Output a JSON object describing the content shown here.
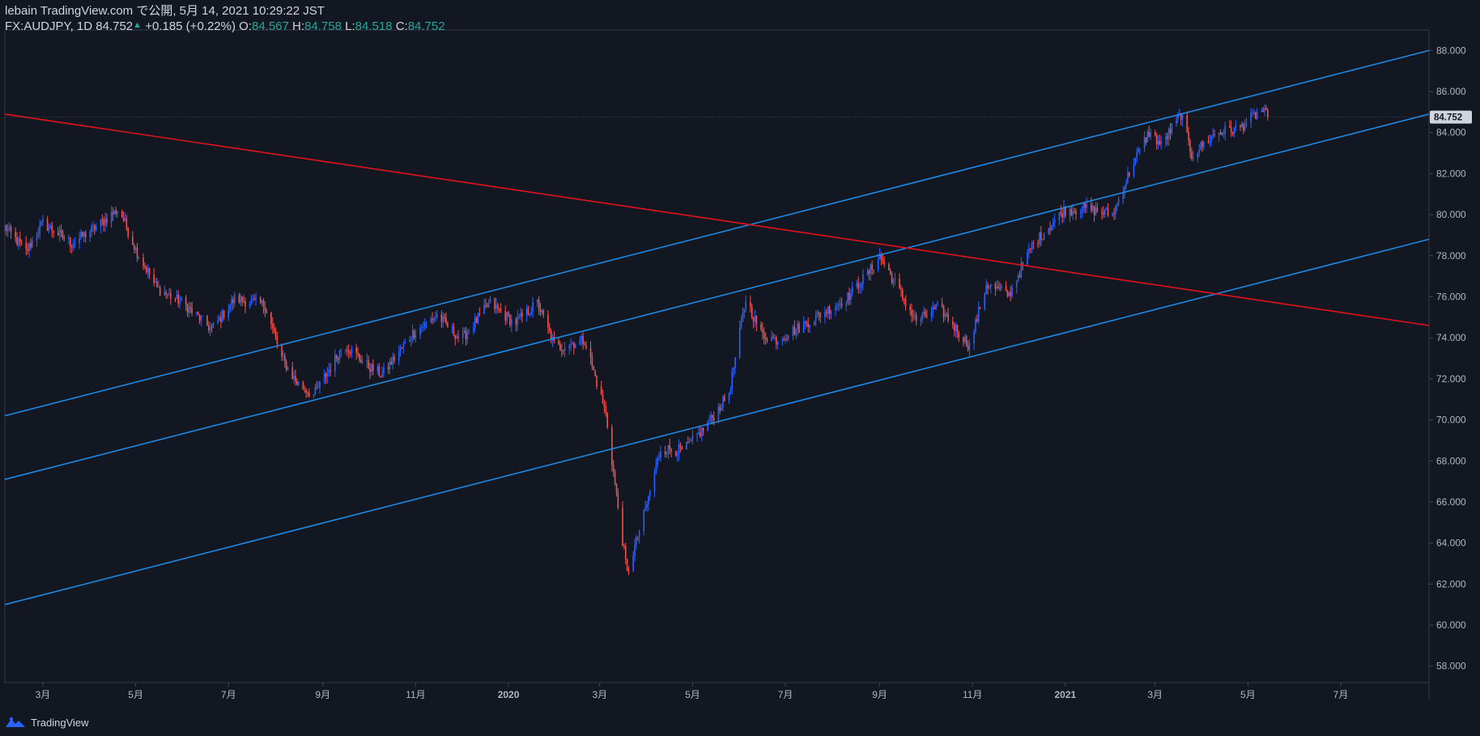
{
  "header": {
    "publish_line": "lebain TradingView.com で公開, 5月 14, 2021 10:29:22 JST",
    "symbol": "FX:AUDJPY, 1D",
    "last": "84.752",
    "change": "+0.185 (+0.22%)",
    "o_label": "O:",
    "o_value": "84.567",
    "h_label": "H:",
    "h_value": "84.758",
    "l_label": "L:",
    "l_value": "84.518",
    "c_label": "C:",
    "c_value": "84.752"
  },
  "footer": {
    "brand": "TradingView"
  },
  "colors": {
    "background": "#131722",
    "up": "#2962ff",
    "down": "#ef5350",
    "channel_line": "#1e88e5",
    "trend_line": "#e3121b",
    "last_price_label_bg": "#d1d4dc"
  },
  "chart_data": {
    "type": "candlestick",
    "symbol": "FX:AUDJPY",
    "interval": "1D",
    "y_ticks": [
      "88.000",
      "86.000",
      "84.000",
      "82.000",
      "80.000",
      "78.000",
      "76.000",
      "74.000",
      "72.000",
      "70.000",
      "68.000",
      "66.000",
      "64.000",
      "62.000",
      "60.000",
      "58.000"
    ],
    "ylim": [
      57.2,
      89.0
    ],
    "last_price": "84.752",
    "x_ticks": [
      {
        "label": "3月",
        "date": "2019-03-01"
      },
      {
        "label": "5月",
        "date": "2019-05-01"
      },
      {
        "label": "7月",
        "date": "2019-07-01"
      },
      {
        "label": "9月",
        "date": "2019-09-01"
      },
      {
        "label": "11月",
        "date": "2019-11-01"
      },
      {
        "label": "2020",
        "date": "2020-01-01"
      },
      {
        "label": "3月",
        "date": "2020-03-01"
      },
      {
        "label": "5月",
        "date": "2020-05-01"
      },
      {
        "label": "7月",
        "date": "2020-07-01"
      },
      {
        "label": "9月",
        "date": "2020-09-01"
      },
      {
        "label": "11月",
        "date": "2020-11-01"
      },
      {
        "label": "2021",
        "date": "2021-01-01"
      },
      {
        "label": "3月",
        "date": "2021-03-01"
      },
      {
        "label": "5月",
        "date": "2021-05-01"
      },
      {
        "label": "7月",
        "date": "2021-07-01"
      }
    ],
    "xlim": [
      "2019-02-04",
      "2021-08-28"
    ],
    "price_path": [
      [
        "2019-02-04",
        79.4
      ],
      [
        "2019-02-18",
        78.2
      ],
      [
        "2019-03-01",
        79.6
      ],
      [
        "2019-03-20",
        78.6
      ],
      [
        "2019-04-05",
        79.4
      ],
      [
        "2019-04-20",
        80.3
      ],
      [
        "2019-05-01",
        78.3
      ],
      [
        "2019-05-15",
        76.4
      ],
      [
        "2019-06-01",
        75.7
      ],
      [
        "2019-06-20",
        74.4
      ],
      [
        "2019-07-05",
        75.9
      ],
      [
        "2019-07-25",
        75.6
      ],
      [
        "2019-08-05",
        73.0
      ],
      [
        "2019-08-15",
        71.8
      ],
      [
        "2019-08-26",
        71.2
      ],
      [
        "2019-09-15",
        73.7
      ],
      [
        "2019-10-01",
        72.6
      ],
      [
        "2019-10-10",
        72.2
      ],
      [
        "2019-10-30",
        74.2
      ],
      [
        "2019-11-15",
        75.1
      ],
      [
        "2019-12-01",
        73.9
      ],
      [
        "2019-12-20",
        75.7
      ],
      [
        "2020-01-05",
        74.7
      ],
      [
        "2020-01-20",
        75.7
      ],
      [
        "2020-02-01",
        73.5
      ],
      [
        "2020-02-20",
        73.9
      ],
      [
        "2020-03-05",
        70.3
      ],
      [
        "2020-03-12",
        66.3
      ],
      [
        "2020-03-19",
        62.5
      ],
      [
        "2020-04-01",
        65.9
      ],
      [
        "2020-04-10",
        68.6
      ],
      [
        "2020-04-25",
        68.5
      ],
      [
        "2020-05-10",
        69.7
      ],
      [
        "2020-05-25",
        71.3
      ],
      [
        "2020-06-05",
        75.9
      ],
      [
        "2020-06-15",
        74.2
      ],
      [
        "2020-06-25",
        73.9
      ],
      [
        "2020-07-10",
        74.5
      ],
      [
        "2020-07-25",
        75.2
      ],
      [
        "2020-08-10",
        75.9
      ],
      [
        "2020-08-25",
        77.2
      ],
      [
        "2020-09-01",
        78.0
      ],
      [
        "2020-09-25",
        74.8
      ],
      [
        "2020-10-10",
        75.5
      ],
      [
        "2020-10-30",
        73.6
      ],
      [
        "2020-11-10",
        76.6
      ],
      [
        "2020-11-25",
        76.1
      ],
      [
        "2020-12-10",
        78.5
      ],
      [
        "2020-12-31",
        80.2
      ],
      [
        "2021-01-15",
        80.3
      ],
      [
        "2021-02-01",
        80.0
      ],
      [
        "2021-02-15",
        82.6
      ],
      [
        "2021-02-25",
        84.0
      ],
      [
        "2021-03-05",
        83.4
      ],
      [
        "2021-03-18",
        84.9
      ],
      [
        "2021-03-25",
        82.9
      ],
      [
        "2021-04-10",
        84.0
      ],
      [
        "2021-04-25",
        84.2
      ],
      [
        "2021-05-10",
        85.1
      ],
      [
        "2021-05-14",
        84.75
      ]
    ],
    "drawings": [
      {
        "name": "channel-upper",
        "color": "blue",
        "points": [
          [
            "2019-02-04",
            70.2
          ],
          [
            "2021-08-28",
            88.0
          ]
        ]
      },
      {
        "name": "channel-middle",
        "color": "blue",
        "points": [
          [
            "2019-02-04",
            67.1
          ],
          [
            "2021-08-28",
            84.9
          ]
        ]
      },
      {
        "name": "channel-lower",
        "color": "blue",
        "points": [
          [
            "2019-02-04",
            61.0
          ],
          [
            "2021-08-28",
            78.8
          ]
        ]
      },
      {
        "name": "downtrend",
        "color": "red",
        "points": [
          [
            "2019-02-04",
            84.9
          ],
          [
            "2021-08-28",
            74.6
          ]
        ]
      }
    ]
  }
}
